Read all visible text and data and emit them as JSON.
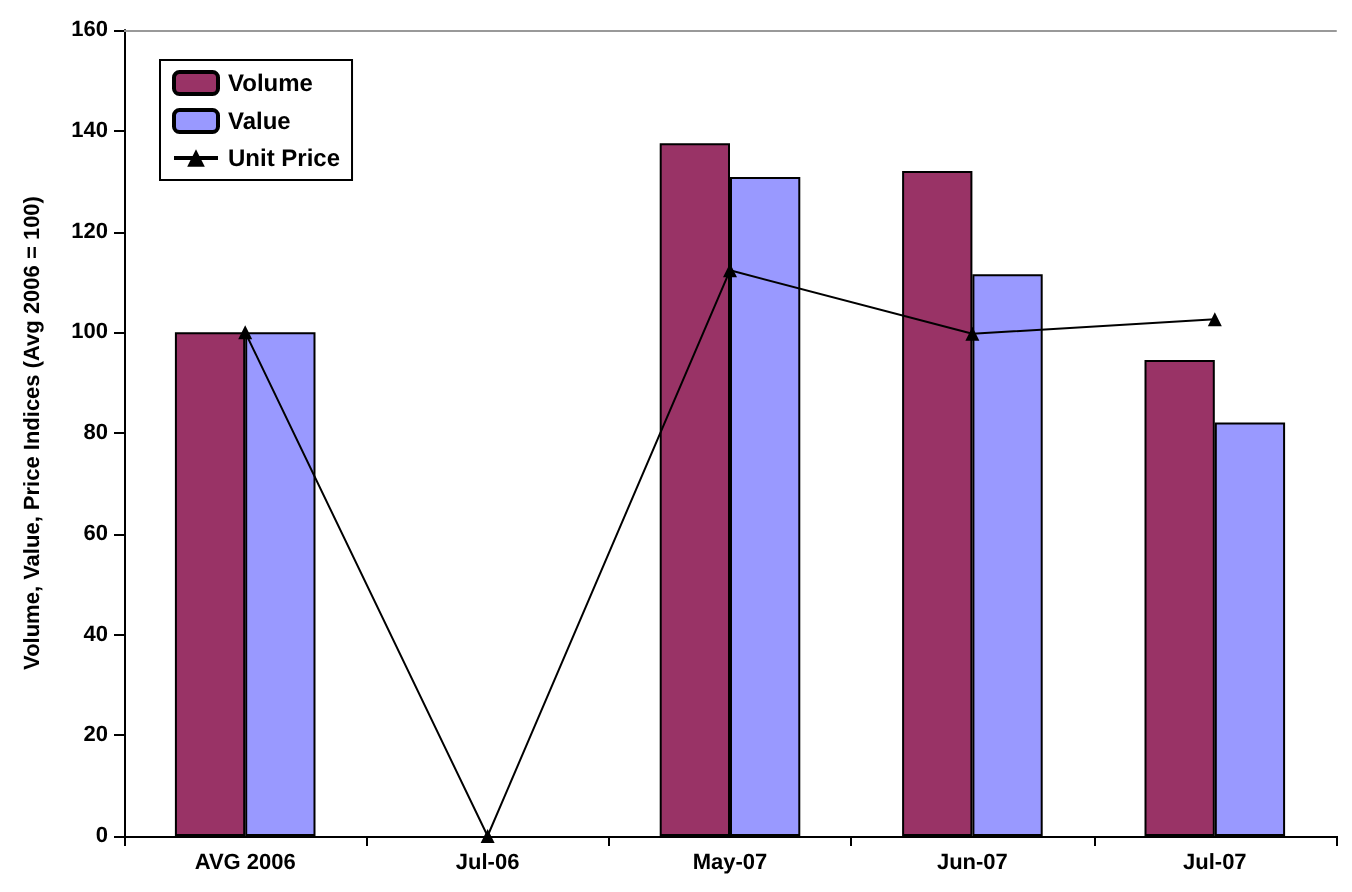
{
  "chart_data": {
    "type": "bar",
    "ylabel": "Volume, Value, Price Indices (Avg 2006 = 100)",
    "categories": [
      "AVG 2006",
      "Jul-06",
      "May-07",
      "Jun-07",
      "Jul-07"
    ],
    "series": [
      {
        "name": "Volume",
        "color": "#993366",
        "values": [
          100,
          null,
          137.5,
          132,
          94.5
        ]
      },
      {
        "name": "Value",
        "color": "#9999ff",
        "values": [
          100,
          null,
          130.8,
          111.5,
          82.1
        ]
      },
      {
        "name": "Unit Price",
        "type": "line",
        "color": "#000000",
        "marker": "triangle",
        "values": [
          100,
          0,
          112.3,
          99.7,
          102.6
        ]
      }
    ],
    "ylim": [
      0,
      160
    ],
    "yticks": [
      0,
      20,
      40,
      60,
      80,
      100,
      120,
      140,
      160
    ],
    "grid": false,
    "legend": "top left"
  }
}
